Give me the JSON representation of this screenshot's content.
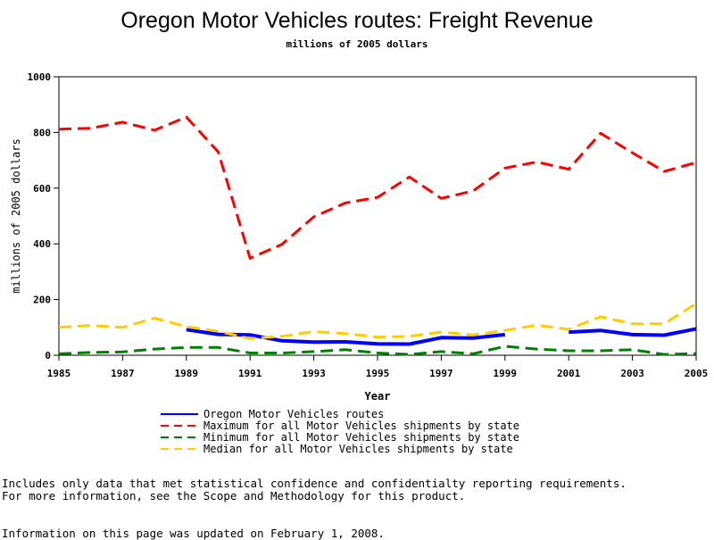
{
  "chart_data": {
    "type": "line",
    "title": "Oregon Motor Vehicles routes: Freight Revenue",
    "subtitle": "millions of 2005 dollars",
    "xlabel": "Year",
    "ylabel": "millions of 2005 dollars",
    "xlim": [
      1985,
      2005
    ],
    "ylim": [
      0,
      1000
    ],
    "x_ticks": [
      1985,
      1987,
      1989,
      1991,
      1993,
      1995,
      1997,
      1999,
      2001,
      2003,
      2005
    ],
    "y_ticks": [
      0,
      200,
      400,
      600,
      800,
      1000
    ],
    "legend_position": "bottom",
    "series": [
      {
        "name": "Oregon Motor Vehicles routes",
        "color": "#0000ff",
        "style": "solid",
        "x": [
          1989,
          1990,
          1991,
          1992,
          1993,
          1994,
          1995,
          1996,
          1997,
          1998,
          1999,
          2000,
          2001,
          2002,
          2003,
          2004,
          2005
        ],
        "values": [
          92,
          75,
          73,
          52,
          47,
          48,
          41,
          40,
          63,
          62,
          74,
          null,
          83,
          89,
          74,
          72,
          95
        ]
      },
      {
        "name": "Maximum for all Motor Vehicles shipments by state",
        "color": "#ff0000",
        "style": "dashed",
        "x": [
          1985,
          1986,
          1987,
          1988,
          1989,
          1990,
          1991,
          1992,
          1993,
          1994,
          1995,
          1996,
          1997,
          1998,
          1999,
          2000,
          2001,
          2002,
          2003,
          2004,
          2005
        ],
        "values": [
          812,
          815,
          837,
          808,
          855,
          730,
          348,
          398,
          497,
          547,
          567,
          640,
          563,
          590,
          672,
          694,
          668,
          797,
          727,
          660,
          692
        ]
      },
      {
        "name": "Minimum for all Motor Vehicles shipments by state",
        "color": "#008000",
        "style": "dashed",
        "x": [
          1985,
          1986,
          1987,
          1988,
          1989,
          1990,
          1991,
          1992,
          1993,
          1994,
          1995,
          1996,
          1997,
          1998,
          1999,
          2000,
          2001,
          2002,
          2003,
          2004,
          2005
        ],
        "values": [
          5,
          10,
          12,
          22,
          28,
          28,
          8,
          8,
          13,
          20,
          8,
          3,
          13,
          5,
          32,
          22,
          16,
          16,
          20,
          3,
          6
        ]
      },
      {
        "name": "Median for all Motor Vehicles shipments by state",
        "color": "#ffcc00",
        "style": "dashed",
        "x": [
          1985,
          1986,
          1987,
          1988,
          1989,
          1990,
          1991,
          1992,
          1993,
          1994,
          1995,
          1996,
          1997,
          1998,
          1999,
          2000,
          2001,
          2002,
          2003,
          2004,
          2005
        ],
        "values": [
          100,
          107,
          100,
          133,
          103,
          86,
          60,
          68,
          85,
          78,
          65,
          68,
          83,
          73,
          89,
          108,
          93,
          138,
          113,
          113,
          185
        ]
      }
    ]
  },
  "notes": {
    "line1": "Includes only data that met statistical confidence and confidentialty reporting requirements.",
    "line2": "For more information, see the Scope and Methodology for this product.",
    "updated": "Information on this page was updated on February 1, 2008."
  }
}
